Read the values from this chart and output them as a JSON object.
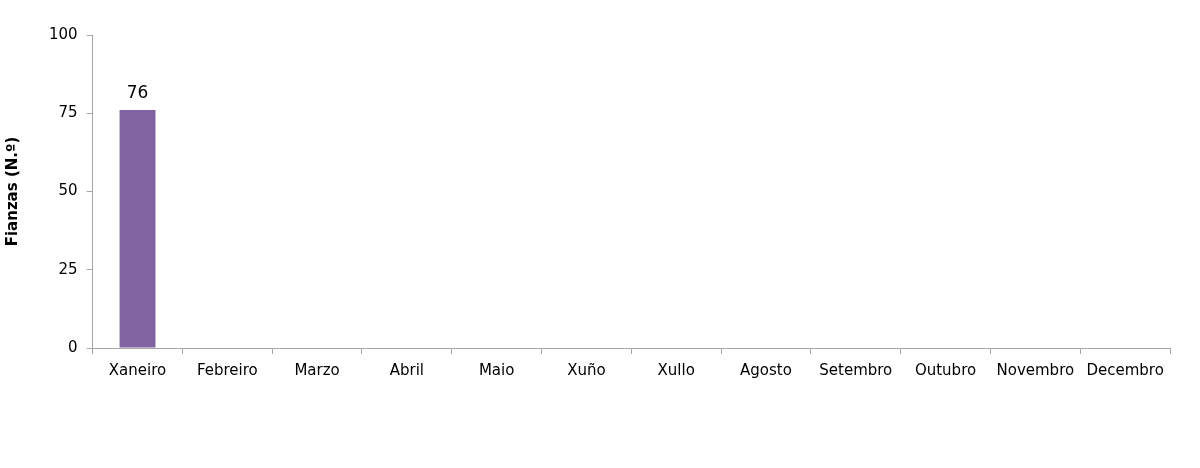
{
  "chart_data": {
    "type": "bar",
    "ylabel": "Fianzas (N.º)",
    "categories": [
      "Xaneiro",
      "Febreiro",
      "Marzo",
      "Abril",
      "Maio",
      "Xuño",
      "Xullo",
      "Agosto",
      "Setembro",
      "Outubro",
      "Novembro",
      "Decembro"
    ],
    "values": [
      76,
      null,
      null,
      null,
      null,
      null,
      null,
      null,
      null,
      null,
      null,
      null
    ],
    "color": "#8064a2",
    "ylim": [
      0,
      100
    ],
    "yticks": [
      0,
      25,
      50,
      75,
      100
    ],
    "data_labels": true
  }
}
